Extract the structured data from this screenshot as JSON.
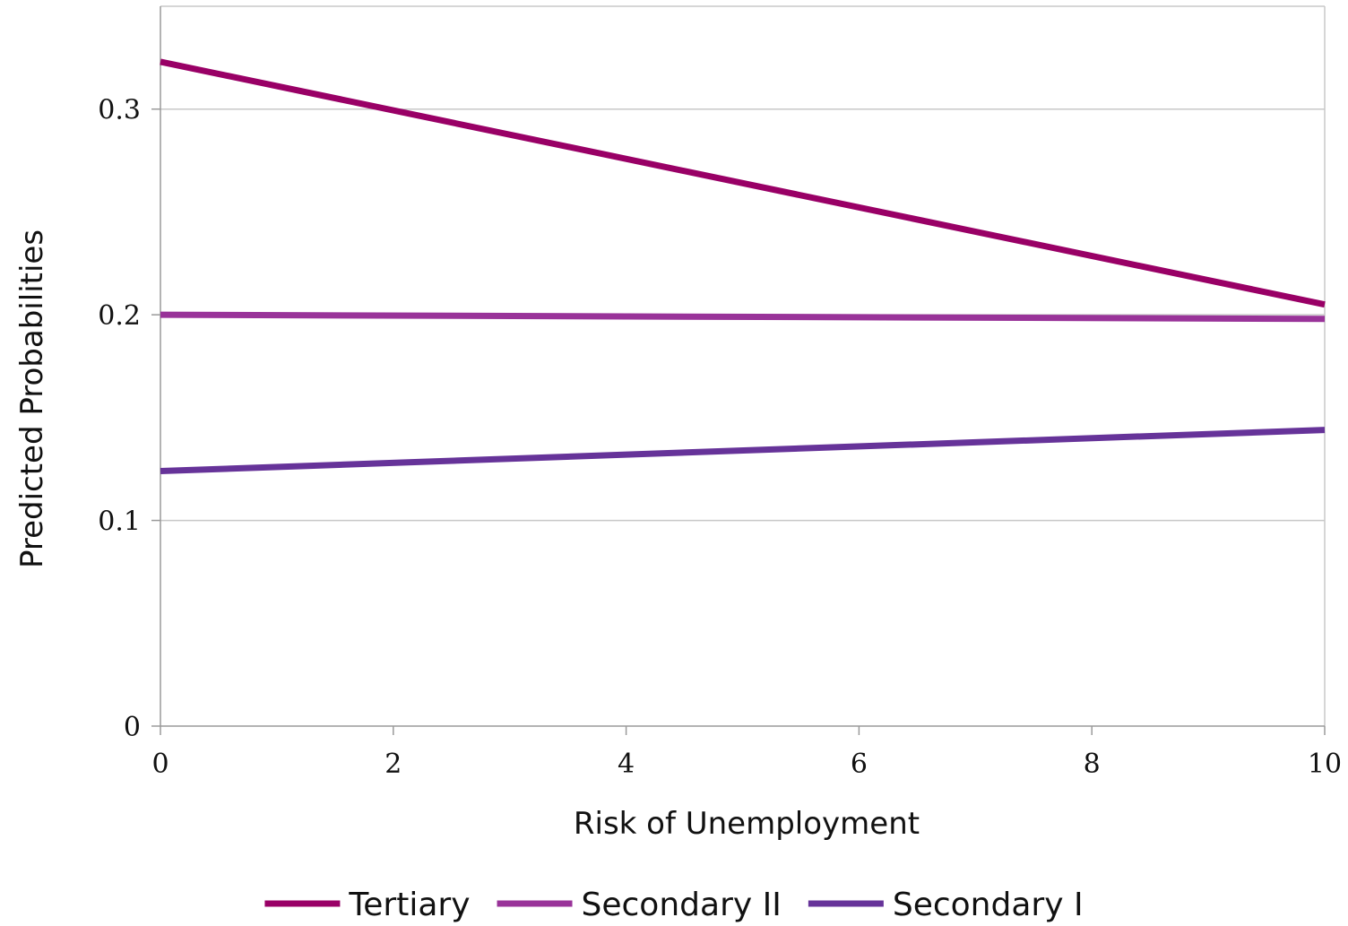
{
  "chart_data": {
    "type": "line",
    "title": "",
    "xlabel": "Risk of Unemployment",
    "ylabel": "Predicted Probabilities",
    "xlim": [
      0,
      10
    ],
    "ylim": [
      0,
      0.35
    ],
    "x_ticks": [
      0,
      2,
      4,
      6,
      8,
      10
    ],
    "x_tick_labels": [
      "0",
      "2",
      "4",
      "6",
      "8",
      "10"
    ],
    "y_ticks": [
      0,
      0.1,
      0.2,
      0.3
    ],
    "y_tick_labels": [
      "0",
      "0.1",
      "0.2",
      "0.3"
    ],
    "grid": "horizontal",
    "legend_position": "bottom",
    "series": [
      {
        "name": "Tertiary",
        "color": "#990066",
        "x": [
          0,
          10
        ],
        "y": [
          0.323,
          0.205
        ]
      },
      {
        "name": "Secondary II",
        "color": "#993399",
        "x": [
          0,
          10
        ],
        "y": [
          0.2,
          0.198
        ]
      },
      {
        "name": "Secondary I",
        "color": "#663399",
        "x": [
          0,
          10
        ],
        "y": [
          0.124,
          0.144
        ]
      }
    ]
  }
}
